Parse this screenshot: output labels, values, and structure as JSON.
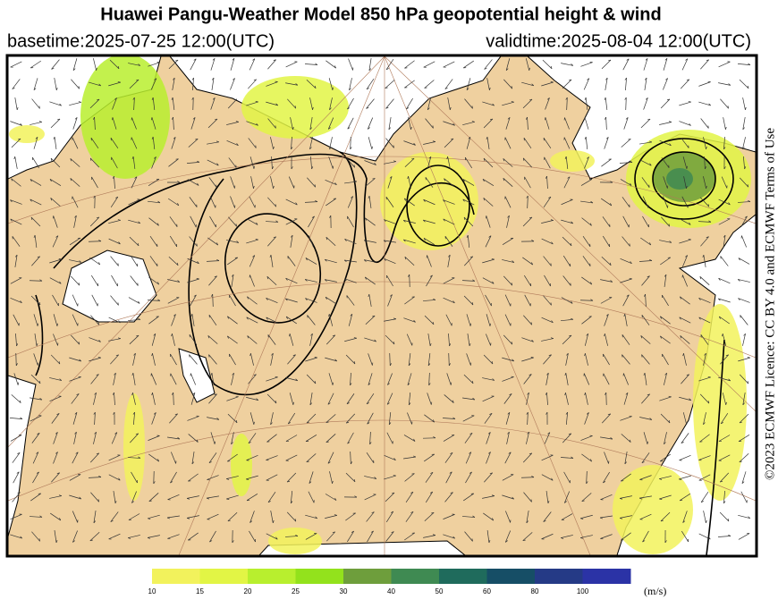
{
  "header": {
    "title": "Huawei Pangu-Weather Model 850 hPa geopotential height & wind",
    "basetime": "basetime:2025-07-25 12:00(UTC)",
    "validtime": "validtime:2025-08-04 12:00(UTC)"
  },
  "licence": "©2023 ECMWF Licence: CC BY 4.0 and ECMWF Terms of Use",
  "colorbar": {
    "ticks": [
      10,
      15,
      20,
      25,
      30,
      40,
      50,
      60,
      80,
      100
    ],
    "colors": [
      "#f2f25c",
      "#e2f545",
      "#b8ef2e",
      "#93e21c",
      "#6e9e3c",
      "#3f8a52",
      "#1f6b5c",
      "#164e66",
      "#253a86",
      "#2b33a6"
    ],
    "unit": "(m/s)"
  }
}
